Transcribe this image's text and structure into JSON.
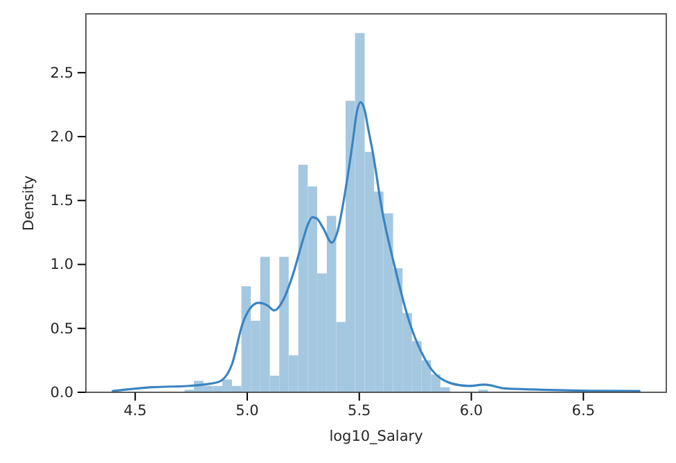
{
  "chart_data": {
    "type": "histogram",
    "xlabel": "log10_Salary",
    "ylabel": "Density",
    "xlim": [
      4.28,
      6.87
    ],
    "ylim": [
      0,
      2.96
    ],
    "xticks": [
      4.5,
      {
        "value": 5,
        "label": "5.0"
      },
      5.5,
      {
        "value": 6,
        "label": "6.0"
      },
      6.5
    ],
    "yticks": [
      {
        "value": 0,
        "label": "0.0"
      },
      0.5,
      {
        "value": 1,
        "label": "1.0"
      },
      1.5,
      {
        "value": 2,
        "label": "2.0"
      },
      2.5
    ],
    "grid": false,
    "bins": [
      4.72,
      4.762,
      4.805,
      4.847,
      4.889,
      4.932,
      4.974,
      5.016,
      5.058,
      5.101,
      5.143,
      5.185,
      5.228,
      5.27,
      5.312,
      5.355,
      5.397,
      5.439,
      5.481,
      5.524,
      5.566,
      5.608,
      5.651,
      5.693,
      5.735,
      5.778,
      5.82,
      5.862,
      5.904,
      5.947,
      5.989,
      6.031,
      6.074,
      6.116,
      6.158,
      6.2,
      6.243,
      6.285,
      6.327,
      6.37,
      6.412,
      6.454,
      6.497,
      6.539,
      6.581,
      6.624,
      6.666,
      6.708,
      6.751
    ],
    "values": [
      0.02,
      0.09,
      0.05,
      0.05,
      0.1,
      0.05,
      0.83,
      0.56,
      1.06,
      0.13,
      1.06,
      0.29,
      1.78,
      1.61,
      0.93,
      1.38,
      0.55,
      2.28,
      2.81,
      1.88,
      1.57,
      1.4,
      0.97,
      0.62,
      0.4,
      0.25,
      0.14,
      0.04,
      0,
      0,
      null,
      0.02,
      null,
      0,
      0,
      null,
      0,
      null,
      null,
      0,
      0,
      0,
      null,
      0,
      0,
      0,
      0,
      0.01
    ],
    "color": "#a5c8e1",
    "series": [
      {
        "type": "line",
        "color": "#3a84c0",
        "x": [
          4.4,
          4.58,
          4.74,
          4.87,
          4.93,
          4.98,
          5.01,
          5.05,
          5.09,
          5.12,
          5.16,
          5.2,
          5.25,
          5.27,
          5.29,
          5.31,
          5.34,
          5.377,
          5.4,
          5.44,
          5.47,
          5.49,
          5.506,
          5.525,
          5.54,
          5.561,
          5.6,
          5.66,
          5.72,
          5.81,
          5.91,
          5.99,
          6.06,
          6.15,
          6.32,
          6.73,
          6.75
        ],
        "values": [
          0.01,
          0.04,
          0.05,
          0.08,
          0.21,
          0.54,
          0.65,
          0.7,
          0.68,
          0.64,
          0.72,
          0.9,
          1.2,
          1.31,
          1.37,
          1.36,
          1.28,
          1.17,
          1.24,
          1.6,
          1.95,
          2.2,
          2.27,
          2.2,
          2.06,
          1.87,
          1.44,
          0.97,
          0.57,
          0.21,
          0.07,
          0.05,
          0.06,
          0.03,
          0.02,
          0.01,
          0.01
        ]
      }
    ]
  }
}
